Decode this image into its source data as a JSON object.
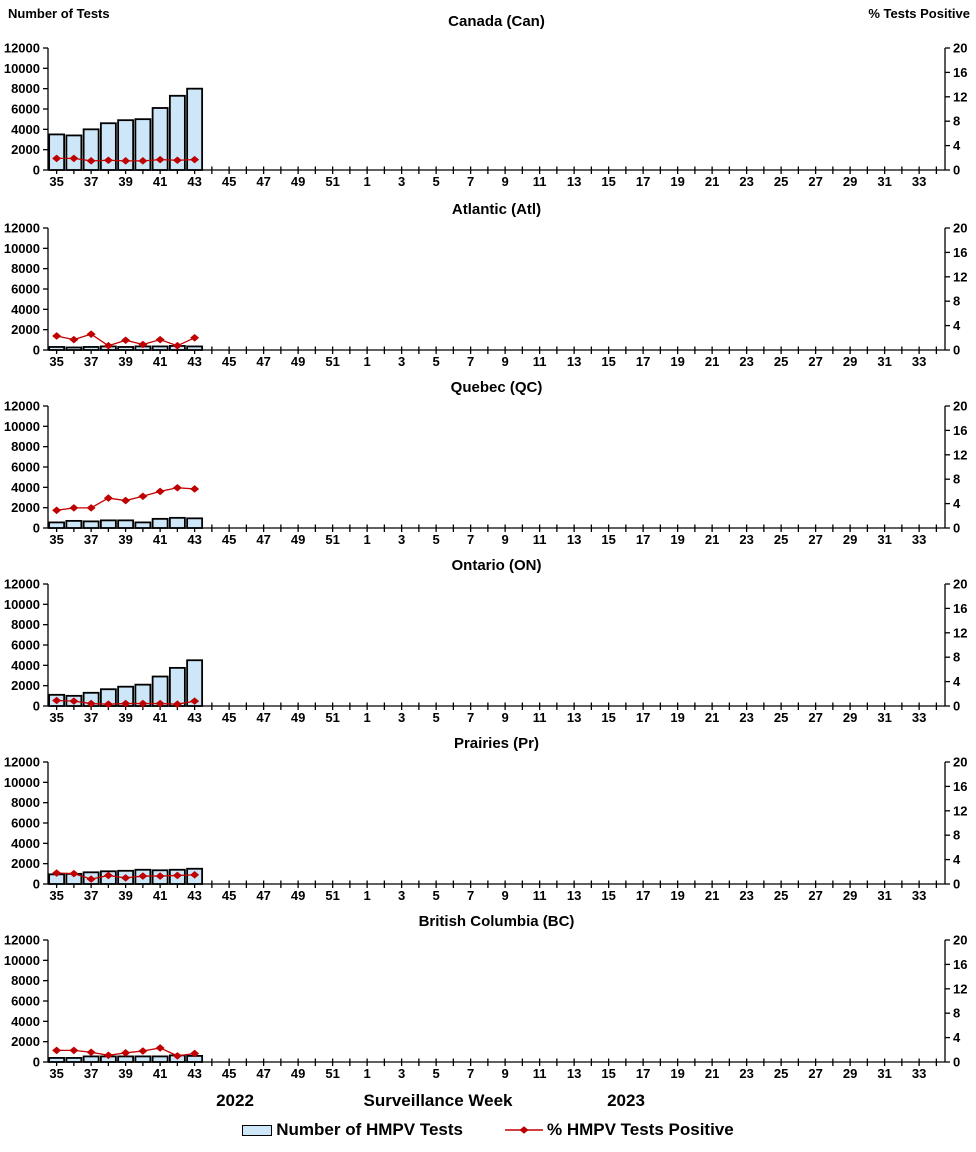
{
  "header": {
    "left_axis_title": "Number of Tests",
    "right_axis_title": "% Tests Positive"
  },
  "footer": {
    "year_left": "2022",
    "x_axis_title": "Surveillance Week",
    "year_right": "2023"
  },
  "legend": {
    "bar_label": "Number of HMPV Tests",
    "line_label": "% HMPV Tests Positive"
  },
  "colors": {
    "bar_fill": "#CDE6F8",
    "bar_border": "#000000",
    "line": "#C00000",
    "marker": "#C00000",
    "axis": "#000000",
    "text": "#000000"
  },
  "axes_config": {
    "x_weeks": [
      35,
      36,
      37,
      38,
      39,
      40,
      41,
      42,
      43,
      44,
      45,
      46,
      47,
      48,
      49,
      50,
      51,
      52,
      1,
      2,
      3,
      4,
      5,
      6,
      7,
      8,
      9,
      10,
      11,
      12,
      13,
      14,
      15,
      16,
      17,
      18,
      19,
      20,
      21,
      22,
      23,
      24,
      25,
      26,
      27,
      28,
      29,
      30,
      31,
      32,
      33,
      34
    ],
    "x_label_interval": 2,
    "left_axis": {
      "title": "Number of Tests",
      "min": 0,
      "max": 12000,
      "tick_step": 2000
    },
    "right_axis": {
      "title": "% Tests Positive",
      "min": 0,
      "max": 20,
      "tick_step": 4
    },
    "grid": false
  },
  "chart_data": [
    {
      "id": "canada",
      "type": "bar+line",
      "title": "Canada (Can)",
      "x_data_weeks": [
        35,
        36,
        37,
        38,
        39,
        40,
        41,
        42,
        43
      ],
      "series": [
        {
          "name": "Number of HMPV Tests",
          "type": "bar",
          "axis": "left",
          "values": [
            3500,
            3400,
            4000,
            4600,
            4900,
            5000,
            6100,
            7300,
            8000
          ]
        },
        {
          "name": "% HMPV Tests Positive",
          "type": "line",
          "axis": "right",
          "values": [
            1.9,
            1.9,
            1.5,
            1.6,
            1.5,
            1.5,
            1.7,
            1.6,
            1.7
          ]
        }
      ]
    },
    {
      "id": "atlantic",
      "type": "bar+line",
      "title": "Atlantic (Atl)",
      "x_data_weeks": [
        35,
        36,
        37,
        38,
        39,
        40,
        41,
        42,
        43
      ],
      "series": [
        {
          "name": "Number of HMPV Tests",
          "type": "bar",
          "axis": "left",
          "values": [
            300,
            250,
            300,
            350,
            300,
            350,
            350,
            400,
            350
          ]
        },
        {
          "name": "% HMPV Tests Positive",
          "type": "line",
          "axis": "right",
          "values": [
            2.3,
            1.7,
            2.6,
            0.7,
            1.6,
            0.9,
            1.7,
            0.7,
            2.0
          ]
        }
      ]
    },
    {
      "id": "quebec",
      "type": "bar+line",
      "title": "Quebec (QC)",
      "x_data_weeks": [
        35,
        36,
        37,
        38,
        39,
        40,
        41,
        42,
        43
      ],
      "series": [
        {
          "name": "Number of HMPV Tests",
          "type": "bar",
          "axis": "left",
          "values": [
            550,
            700,
            650,
            750,
            750,
            550,
            900,
            1000,
            950
          ]
        },
        {
          "name": "% HMPV Tests Positive",
          "type": "line",
          "axis": "right",
          "values": [
            2.9,
            3.3,
            3.3,
            4.9,
            4.5,
            5.2,
            6.0,
            6.6,
            6.4
          ]
        }
      ]
    },
    {
      "id": "ontario",
      "type": "bar+line",
      "title": "Ontario (ON)",
      "x_data_weeks": [
        35,
        36,
        37,
        38,
        39,
        40,
        41,
        42,
        43
      ],
      "series": [
        {
          "name": "Number of HMPV Tests",
          "type": "bar",
          "axis": "left",
          "values": [
            1100,
            1000,
            1300,
            1650,
            1900,
            2100,
            2900,
            3750,
            4500
          ]
        },
        {
          "name": "% HMPV Tests Positive",
          "type": "line",
          "axis": "right",
          "values": [
            0.9,
            0.8,
            0.4,
            0.3,
            0.4,
            0.4,
            0.4,
            0.3,
            0.8
          ]
        }
      ]
    },
    {
      "id": "prairies",
      "type": "bar+line",
      "title": "Prairies (Pr)",
      "x_data_weeks": [
        35,
        36,
        37,
        38,
        39,
        40,
        41,
        42,
        43
      ],
      "series": [
        {
          "name": "Number of HMPV Tests",
          "type": "bar",
          "axis": "left",
          "values": [
            950,
            1000,
            1150,
            1250,
            1300,
            1400,
            1350,
            1400,
            1500
          ]
        },
        {
          "name": "% HMPV Tests Positive",
          "type": "line",
          "axis": "right",
          "values": [
            1.8,
            1.7,
            0.8,
            1.4,
            1.0,
            1.3,
            1.3,
            1.4,
            1.5
          ]
        }
      ]
    },
    {
      "id": "bc",
      "type": "bar+line",
      "title": "British Columbia (BC)",
      "x_data_weeks": [
        35,
        36,
        37,
        38,
        39,
        40,
        41,
        42,
        43
      ],
      "series": [
        {
          "name": "Number of HMPV Tests",
          "type": "bar",
          "axis": "left",
          "values": [
            400,
            400,
            550,
            550,
            550,
            550,
            550,
            650,
            600
          ]
        },
        {
          "name": "% HMPV Tests Positive",
          "type": "line",
          "axis": "right",
          "values": [
            1.9,
            1.9,
            1.6,
            1.1,
            1.5,
            1.8,
            2.3,
            1.0,
            1.4
          ]
        }
      ]
    }
  ]
}
